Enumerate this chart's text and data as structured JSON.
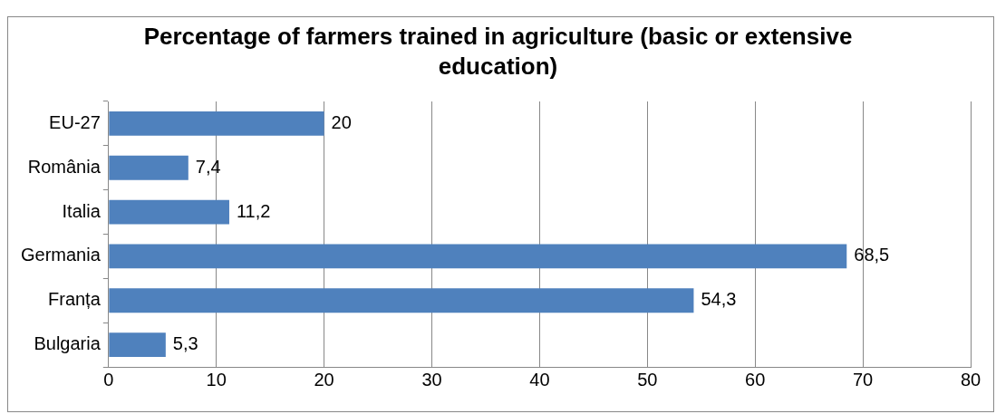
{
  "chart_data": {
    "type": "bar",
    "orientation": "horizontal",
    "title": "Percentage of farmers trained in agriculture (basic or extensive education)",
    "categories": [
      "EU-27",
      "România",
      "Italia",
      "Germania",
      "Franța",
      "Bulgaria"
    ],
    "values": [
      20,
      7.4,
      11.2,
      68.5,
      54.3,
      5.3
    ],
    "value_labels": [
      "20",
      "7,4",
      "11,2",
      "68,5",
      "54,3",
      "5,3"
    ],
    "color": "#4f81bd",
    "xlim": [
      0,
      80
    ],
    "xticks": [
      0,
      10,
      20,
      30,
      40,
      50,
      60,
      70,
      80
    ],
    "grid": "x",
    "legend": false
  }
}
